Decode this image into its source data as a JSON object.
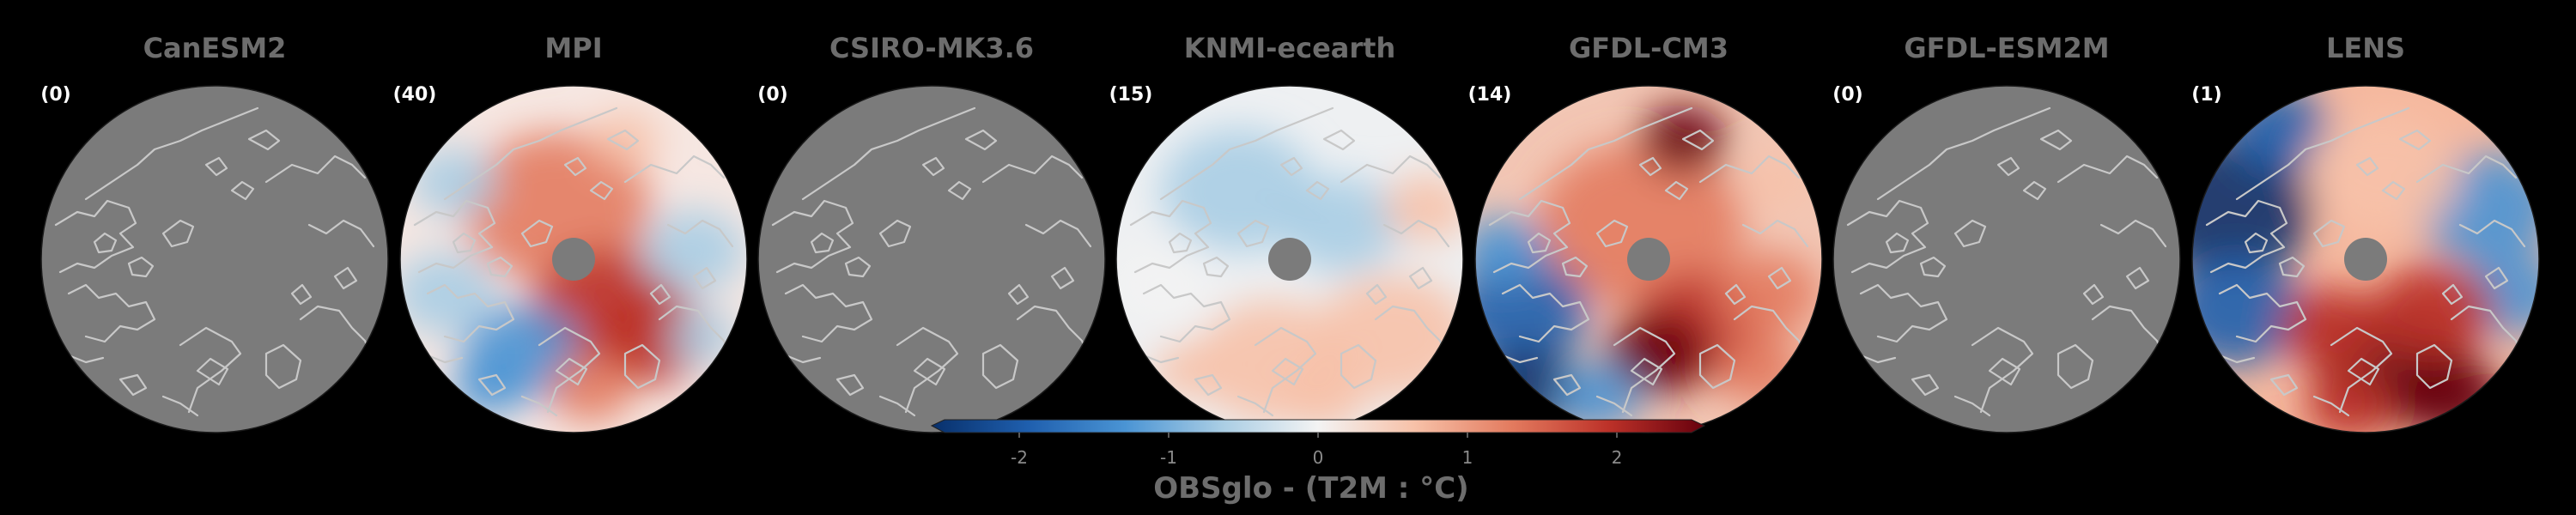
{
  "panels": [
    {
      "id": "canesm2",
      "title": "CanESM2",
      "count": "(0)",
      "field": "none"
    },
    {
      "id": "mpi",
      "title": "MPI",
      "count": "(40)",
      "field": "mpi"
    },
    {
      "id": "csiro",
      "title": "CSIRO-MK3.6",
      "count": "(0)",
      "field": "none"
    },
    {
      "id": "knmi",
      "title": "KNMI-ecearth",
      "count": "(15)",
      "field": "knmi"
    },
    {
      "id": "gfdlcm3",
      "title": "GFDL-CM3",
      "count": "(14)",
      "field": "gfdlcm3"
    },
    {
      "id": "gfdlesm2m",
      "title": "GFDL-ESM2M",
      "count": "(0)",
      "field": "none"
    },
    {
      "id": "lens",
      "title": "LENS",
      "count": "(1)",
      "field": "lens"
    }
  ],
  "colorbar": {
    "title": "OBSglo - (T2M : °C)",
    "ticks": [
      "-2",
      "-1",
      "0",
      "1",
      "2"
    ],
    "tick_values": [
      -2,
      -1,
      0,
      1,
      2
    ],
    "range": [
      -2.5,
      2.5
    ],
    "colormap": [
      "#08306b",
      "#1f5fae",
      "#4a94d4",
      "#a9cde4",
      "#f3f3f3",
      "#f7c1a8",
      "#e37b5f",
      "#bd3229",
      "#67000d"
    ]
  },
  "colors": {
    "background": "#000000",
    "land_masked": "#7b7b7b",
    "pole_hole": "#7b7b7b",
    "coastline": "#c8c8c8",
    "title_text": "#6d6d6d"
  }
}
